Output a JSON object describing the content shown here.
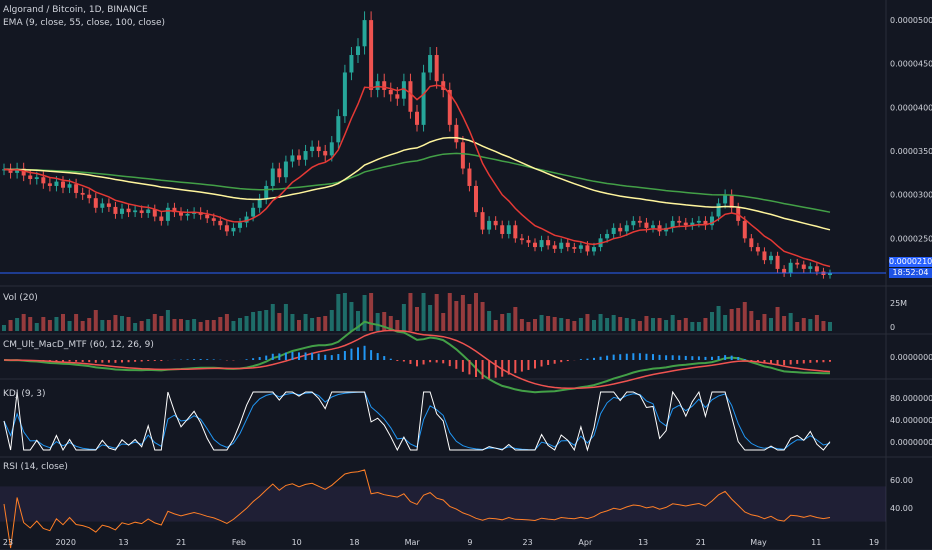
{
  "header": {
    "symbol_line": "Algorand / Bitcoin, 1D, BINANCE",
    "ema_line": "EMA (9, close, 55, close, 100, close)"
  },
  "panes": {
    "volume": "Vol (20)",
    "macd": "CM_Ult_MacD_MTF (60, 12, 26, 9)",
    "kdj": "KDJ (9, 3)",
    "rsi": "RSI (14, close)"
  },
  "price_tag": {
    "value": "0.00002103",
    "countdown": "18:52:04"
  },
  "colors": {
    "bg": "#131722",
    "up": "#26a69a",
    "down": "#ef5350",
    "ema9": "#e53935",
    "ema55": "#fff59d",
    "ema100": "#43a047",
    "rsi": "#ff7f27",
    "kdj_k": "#ffffff",
    "kdj_d": "#2196f3",
    "kdj_j": "#ff6f3c",
    "price_line": "#2962ff"
  },
  "chart_data": {
    "type": "candlestick",
    "title": "Algorand / Bitcoin, 1D, BINANCE",
    "price_axis_ticks": [
      "0.00005000",
      "0.00004500",
      "0.00004000",
      "0.00003500",
      "0.00003000",
      "0.00002500",
      "0.00002103"
    ],
    "price_ylim": [
      2e-05,
      5.15e-05
    ],
    "x_tick_labels": [
      "23",
      "2020",
      "13",
      "21",
      "Feb",
      "10",
      "18",
      "Mar",
      "9",
      "23",
      "Apr",
      "13",
      "21",
      "May",
      "11",
      "19"
    ],
    "volume_axis_ticks": [
      "25M",
      "0"
    ],
    "macd_axis_ticks": [
      "0.00000000"
    ],
    "kdj_axis_ticks": [
      "80.00000000",
      "40.00000000",
      "0.00000000"
    ],
    "rsi_axis_ticks": [
      "60.00",
      "40.00"
    ],
    "close_series": [
      3.29e-05,
      3.25e-05,
      3.3e-05,
      3.22e-05,
      3.18e-05,
      3.2e-05,
      3.13e-05,
      3.1e-05,
      3.15e-05,
      3.08e-05,
      3.12e-05,
      3.02e-05,
      3e-05,
      2.96e-05,
      2.85e-05,
      2.9e-05,
      2.86e-05,
      2.78e-05,
      2.84e-05,
      2.8e-05,
      2.82e-05,
      2.79e-05,
      2.83e-05,
      2.75e-05,
      2.7e-05,
      2.85e-05,
      2.8e-05,
      2.76e-05,
      2.78e-05,
      2.8e-05,
      2.77e-05,
      2.73e-05,
      2.7e-05,
      2.65e-05,
      2.58e-05,
      2.62e-05,
      2.68e-05,
      2.75e-05,
      2.85e-05,
      2.95e-05,
      3.1e-05,
      3.3e-05,
      3.2e-05,
      3.38e-05,
      3.45e-05,
      3.4e-05,
      3.5e-05,
      3.55e-05,
      3.5e-05,
      3.45e-05,
      3.6e-05,
      3.9e-05,
      4.4e-05,
      4.6e-05,
      4.7e-05,
      5e-05,
      4.2e-05,
      4.3e-05,
      4.2e-05,
      4.15e-05,
      4.1e-05,
      4.3e-05,
      3.95e-05,
      3.8e-05,
      4.4e-05,
      4.6e-05,
      4.3e-05,
      4.2e-05,
      3.8e-05,
      3.6e-05,
      3.3e-05,
      3.1e-05,
      2.8e-05,
      2.6e-05,
      2.7e-05,
      2.65e-05,
      2.55e-05,
      2.65e-05,
      2.5e-05,
      2.48e-05,
      2.45e-05,
      2.4e-05,
      2.48e-05,
      2.42e-05,
      2.38e-05,
      2.45e-05,
      2.4e-05,
      2.38e-05,
      2.42e-05,
      2.35e-05,
      2.4e-05,
      2.5e-05,
      2.55e-05,
      2.62e-05,
      2.58e-05,
      2.65e-05,
      2.7e-05,
      2.68e-05,
      2.62e-05,
      2.65e-05,
      2.58e-05,
      2.62e-05,
      2.7e-05,
      2.68e-05,
      2.65e-05,
      2.68e-05,
      2.7e-05,
      2.65e-05,
      2.75e-05,
      2.9e-05,
      3e-05,
      2.85e-05,
      2.7e-05,
      2.5e-05,
      2.4e-05,
      2.35e-05,
      2.25e-05,
      2.3e-05,
      2.15e-05,
      2.1e-05,
      2.22e-05,
      2.2e-05,
      2.15e-05,
      2.18e-05,
      2.12e-05,
      2.08e-05,
      2.1e-05
    ]
  }
}
